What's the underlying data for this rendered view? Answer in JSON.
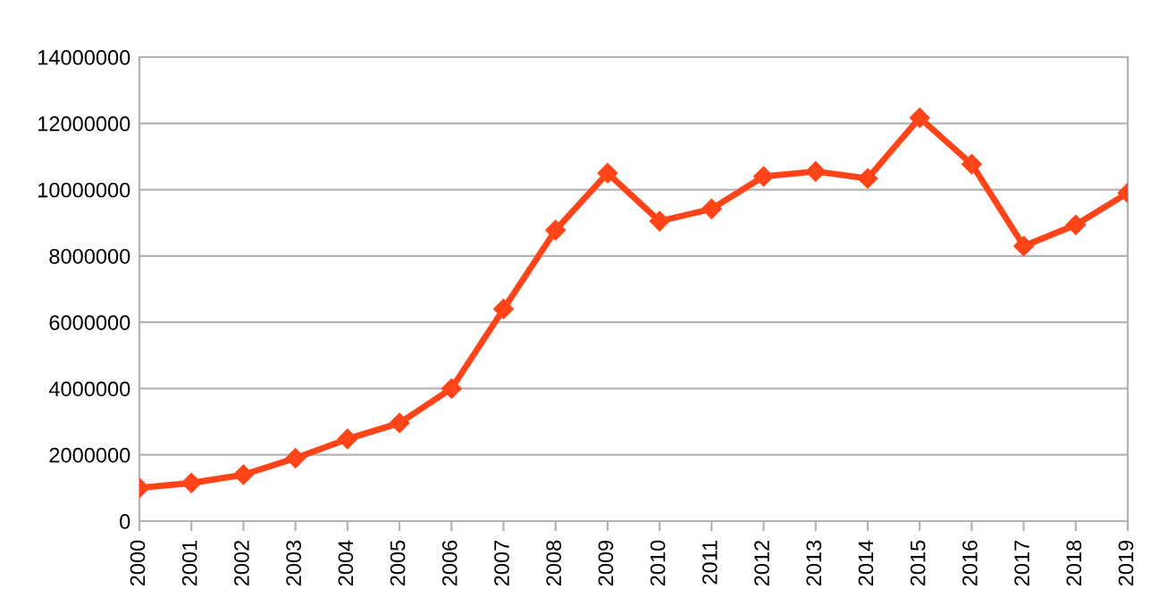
{
  "chart_data": {
    "type": "line",
    "categories": [
      "2000",
      "2001",
      "2002",
      "2003",
      "2004",
      "2005",
      "2006",
      "2007",
      "2008",
      "2009",
      "2010",
      "2011",
      "2012",
      "2013",
      "2014",
      "2015",
      "2016",
      "2017",
      "2018",
      "2019"
    ],
    "series": [
      {
        "color": "#ff4419",
        "values": [
          1000000,
          1150000,
          1400000,
          1900000,
          2480000,
          2960000,
          4000000,
          6400000,
          8780000,
          10500000,
          9050000,
          9420000,
          10400000,
          10550000,
          10340000,
          12170000,
          10770000,
          8300000,
          8940000,
          9900000
        ]
      }
    ],
    "ylim": [
      0,
      14000000
    ],
    "yticks": [
      0,
      2000000,
      4000000,
      6000000,
      8000000,
      10000000,
      12000000,
      14000000
    ],
    "grid": "y",
    "marker": "diamond",
    "line_style": "solid"
  }
}
